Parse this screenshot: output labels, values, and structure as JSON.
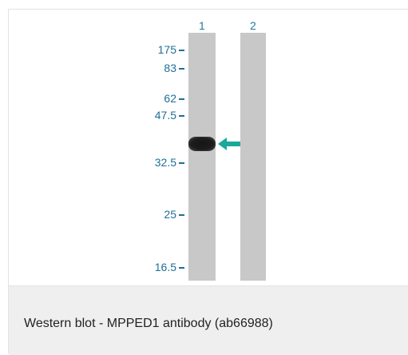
{
  "blot": {
    "lanes": [
      "1",
      "2"
    ],
    "markers": [
      "175",
      "83",
      "62",
      "47.5",
      "32.5",
      "25",
      "16.5"
    ],
    "colors": {
      "marker": "#1f6f96",
      "arrow": "#1aa89a",
      "lane": "#c8c8c8",
      "band": "#1a1a1a"
    }
  },
  "caption": "Western blot - MPPED1 antibody (ab66988)"
}
